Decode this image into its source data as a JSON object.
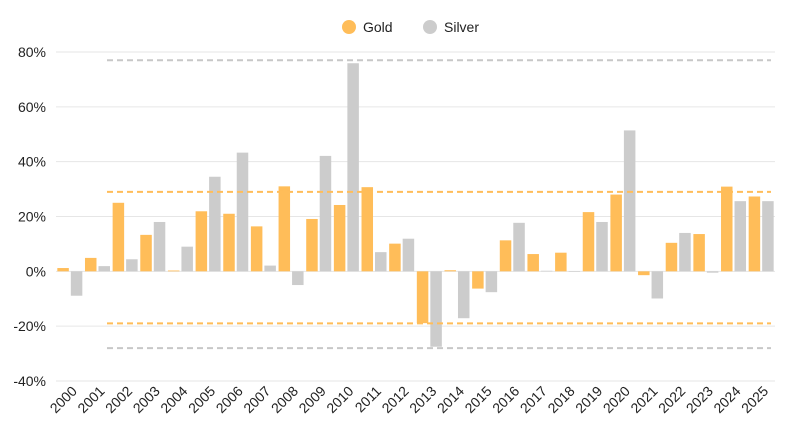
{
  "chart_data": {
    "type": "bar",
    "title": "",
    "xlabel": "",
    "ylabel": "",
    "ylim": [
      -40,
      80
    ],
    "yticks": [
      -40,
      -20,
      0,
      20,
      40,
      60,
      80
    ],
    "ytick_labels": [
      "-40%",
      "-20%",
      "0%",
      "20%",
      "40%",
      "60%",
      "80%"
    ],
    "grid": "horizontal",
    "legend_position": "top-center",
    "categories": [
      "2000",
      "2001",
      "2002",
      "2003",
      "2004",
      "2005",
      "2006",
      "2007",
      "2008",
      "2009",
      "2010",
      "2011",
      "2012",
      "2013",
      "2014",
      "2015",
      "2016",
      "2017",
      "2018",
      "2019",
      "2020",
      "2021",
      "2022",
      "2023",
      "2024",
      "2025"
    ],
    "series": [
      {
        "name": "Gold",
        "color": "#FFBD59",
        "values": [
          1.2,
          4.9,
          25.0,
          13.3,
          0.3,
          21.9,
          21.0,
          16.4,
          31.0,
          19.1,
          24.2,
          30.7,
          10.1,
          -18.9,
          0.4,
          -6.3,
          11.3,
          6.3,
          6.8,
          21.6,
          28.0,
          -1.4,
          10.4,
          13.6,
          30.9,
          27.3
        ]
      },
      {
        "name": "Silver",
        "color": "#CCCCCC",
        "values": [
          -8.9,
          1.9,
          4.4,
          18.0,
          9.0,
          34.5,
          43.3,
          2.1,
          -5.0,
          42.1,
          75.9,
          7.0,
          11.9,
          -27.5,
          -17.1,
          -7.6,
          17.7,
          0.2,
          0.1,
          18.0,
          51.4,
          -9.9,
          14.0,
          -0.5,
          25.6,
          25.6
        ]
      }
    ],
    "reference_lines": [
      {
        "name": "silver-upper",
        "value": 77,
        "color": "#C7C7C7",
        "style": "dashed"
      },
      {
        "name": "gold-upper",
        "value": 29,
        "color": "#FFBD59",
        "style": "dashed"
      },
      {
        "name": "gold-lower",
        "value": -19,
        "color": "#FFBD59",
        "style": "dashed"
      },
      {
        "name": "silver-lower",
        "value": -28,
        "color": "#C7C7C7",
        "style": "dashed"
      }
    ]
  },
  "legend": {
    "gold_label": "Gold",
    "silver_label": "Silver"
  },
  "colors": {
    "gold": "#FFBD59",
    "silver": "#CCCCCC",
    "grid": "#E6E6E6",
    "axis_text": "#222222"
  }
}
